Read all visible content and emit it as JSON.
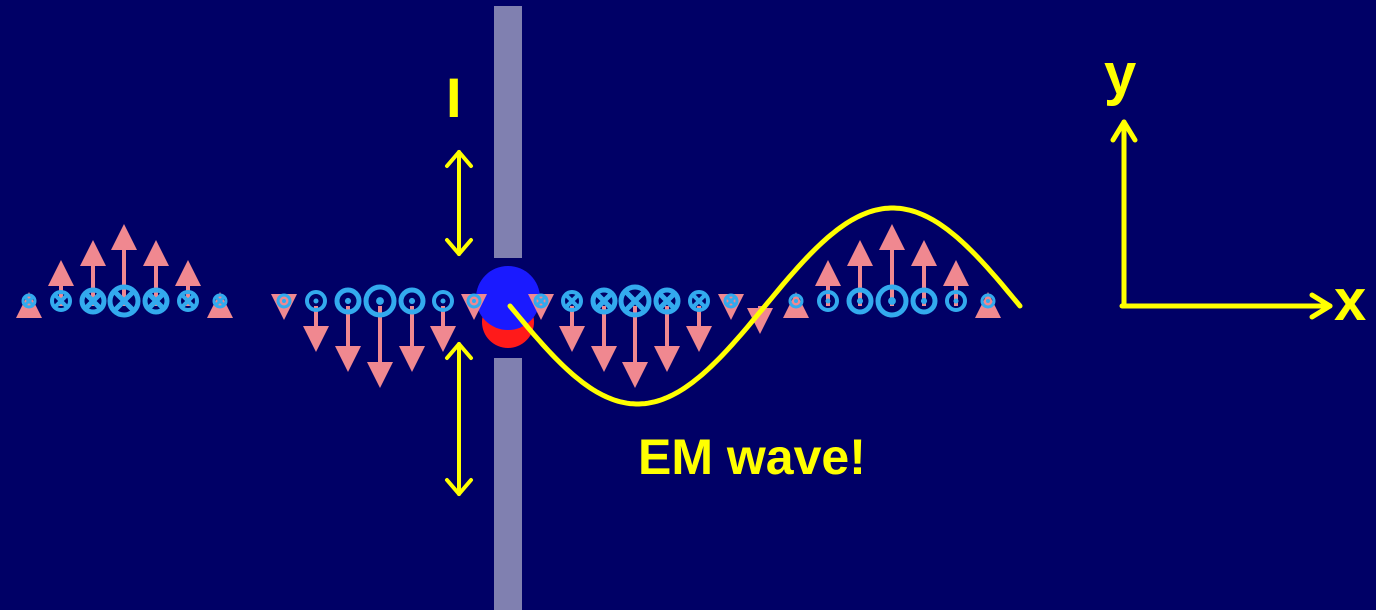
{
  "labels": {
    "current": "I",
    "axis_y": "y",
    "axis_x": "x",
    "caption": "EM wave!"
  },
  "colors": {
    "background": "#000066",
    "antenna": "#8080b0",
    "charge_positive": "#1a1aff",
    "charge_negative": "#ff1a1a",
    "e_field_arrow": "#f08890",
    "b_field_symbol": "#33aaee",
    "label_text": "#ffff00",
    "wave_curve": "#ffff00"
  },
  "icons": {
    "b_into_page": "circled-x-icon",
    "b_out_of_page": "circled-dot-icon",
    "e_field": "arrow-icon"
  }
}
